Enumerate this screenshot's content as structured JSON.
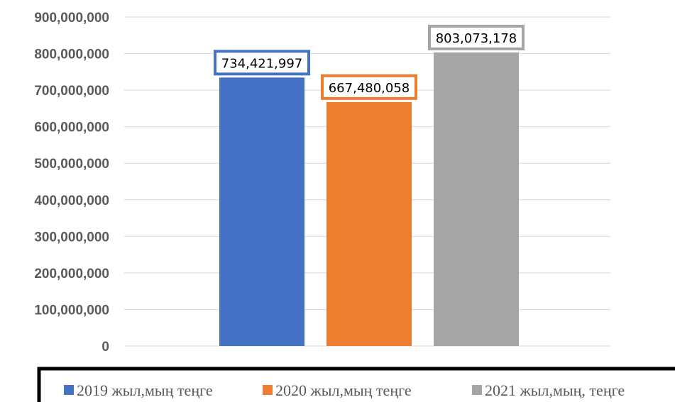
{
  "chart_data": {
    "type": "bar",
    "title": "",
    "xlabel": "",
    "ylabel": "",
    "ylim": [
      0,
      900000000
    ],
    "ytick_step": 100000000,
    "grid": true,
    "legend_position": "bottom",
    "series": [
      {
        "name": "2019 жыл,мың теңге",
        "values": [
          734421997
        ],
        "label": "734,421,997",
        "color": "#4472C4"
      },
      {
        "name": "2020 жыл,мың теңге",
        "values": [
          667480058
        ],
        "label": "667,480,058",
        "color": "#ED7D31"
      },
      {
        "name": "2021 жыл,мың, теңге",
        "values": [
          803073178
        ],
        "label": "803,073,178",
        "color": "#A5A5A5"
      }
    ],
    "yticks": [
      "0",
      "100,000,000",
      "200,000,000",
      "300,000,000",
      "400,000,000",
      "500,000,000",
      "600,000,000",
      "700,000,000",
      "800,000,000",
      "900,000,000"
    ]
  },
  "colors": {
    "grid": "#D9D9D9",
    "tick_text": "#595959",
    "legend_border": "#000000"
  }
}
